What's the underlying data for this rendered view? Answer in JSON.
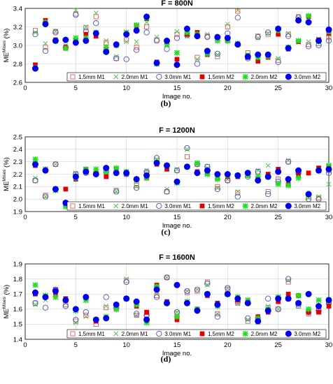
{
  "figure": {
    "colors": {
      "light_red": "#e05a5a",
      "light_green": "#52c452",
      "light_blue": "#4a55bf",
      "red": "#e00000",
      "green": "#22e022",
      "blue": "#0000ee"
    },
    "legend_labels": [
      "1.5mm M1",
      "2.0mm M1",
      "3.0mm M1",
      "1.5mm M2",
      "2.0mm M2",
      "3.0mm M2"
    ]
  },
  "chart_data": [
    {
      "type": "scatter",
      "title": "F = 800N",
      "letter": "(b)",
      "xlabel": "Image no.",
      "ylabel": "ME",
      "ylabel_sup": "Mises",
      "ylabel_unit": "(%)",
      "xlim": [
        0,
        30
      ],
      "ylim": [
        2.6,
        3.4
      ],
      "xticks": [
        0,
        5,
        10,
        15,
        20,
        25,
        30
      ],
      "yticks": [
        2.6,
        2.8,
        3.0,
        3.2,
        3.4
      ],
      "x": [
        1,
        2,
        3,
        4,
        5,
        6,
        7,
        8,
        9,
        10,
        11,
        12,
        13,
        14,
        15,
        16,
        17,
        18,
        19,
        20,
        21,
        22,
        23,
        24,
        25,
        26,
        27,
        28,
        29,
        30
      ],
      "series": [
        {
          "name": "1.5mm M1",
          "marker": "open-square",
          "color": "#e05a5a",
          "values": [
            3.16,
            2.98,
            3.15,
            2.97,
            3.34,
            3.19,
            3.31,
            3.03,
            2.86,
            3.06,
            2.98,
            3.2,
            3.06,
            3.04,
            3.12,
            3.14,
            2.87,
            3.1,
            2.88,
            3.2,
            3.37,
            2.92,
            3.1,
            3.12,
            2.84,
            3.12,
            3.31,
            3.01,
            3.02,
            3.09
          ]
        },
        {
          "name": "2.0mm M1",
          "marker": "x",
          "color": "#52c452",
          "values": [
            3.14,
            3.02,
            3.15,
            3.0,
            3.38,
            3.2,
            3.35,
            3.05,
            2.88,
            3.04,
            3.04,
            3.25,
            3.09,
            3.03,
            3.15,
            3.1,
            2.85,
            3.12,
            2.9,
            3.23,
            3.38,
            2.9,
            3.08,
            3.13,
            2.86,
            3.13,
            3.3,
            3.04,
            3.07,
            3.12
          ]
        },
        {
          "name": "3.0mm M1",
          "marker": "open-circle",
          "color": "#4a55bf",
          "values": [
            3.12,
            2.94,
            3.14,
            2.98,
            3.33,
            3.15,
            3.24,
            2.94,
            2.86,
            2.85,
            2.95,
            3.14,
            3.05,
            2.96,
            3.08,
            3.11,
            2.8,
            3.09,
            2.91,
            3.13,
            3.3,
            2.86,
            3.09,
            3.14,
            2.82,
            3.1,
            3.3,
            2.99,
            3.0,
            3.05
          ]
        },
        {
          "name": "1.5mm M2",
          "marker": "filled-square",
          "color": "#e00000",
          "values": [
            2.79,
            3.27,
            3.06,
            2.98,
            3.05,
            3.12,
            3.1,
            2.96,
            3.0,
            3.12,
            3.21,
            3.29,
            2.82,
            3.04,
            2.85,
            3.12,
            3.14,
            2.9,
            3.07,
            3.05,
            3.01,
            2.87,
            2.83,
            2.87,
            3.12,
            2.96,
            3.04,
            3.31,
            3.06,
            3.13
          ]
        },
        {
          "name": "2.0mm M2",
          "marker": "star",
          "color": "#22e022",
          "values": [
            2.76,
            3.25,
            3.05,
            2.97,
            3.08,
            3.08,
            3.14,
            2.98,
            3.0,
            3.14,
            3.22,
            3.3,
            2.8,
            3.01,
            2.92,
            3.14,
            3.12,
            2.91,
            3.05,
            3.05,
            3.02,
            2.89,
            2.87,
            2.88,
            3.16,
            2.98,
            3.05,
            3.32,
            3.04,
            3.15
          ]
        },
        {
          "name": "3.0mm M2",
          "marker": "filled-circle",
          "color": "#0000ee",
          "values": [
            2.75,
            3.23,
            3.05,
            3.06,
            3.03,
            3.05,
            3.13,
            2.93,
            3.01,
            3.12,
            3.16,
            3.31,
            2.81,
            3.05,
            2.79,
            3.18,
            3.1,
            2.94,
            3.09,
            3.08,
            3.01,
            2.88,
            2.9,
            2.9,
            3.18,
            2.97,
            3.27,
            3.25,
            3.05,
            3.17
          ]
        }
      ]
    },
    {
      "type": "scatter",
      "title": "F = 1200N",
      "letter": "(c)",
      "xlabel": "Image no.",
      "ylabel": "ME",
      "ylabel_sup": "Mises",
      "ylabel_unit": "(%)",
      "xlim": [
        0,
        30
      ],
      "ylim": [
        1.9,
        2.5
      ],
      "xticks": [
        0,
        5,
        10,
        15,
        20,
        25,
        30
      ],
      "yticks": [
        1.9,
        2.0,
        2.1,
        2.2,
        2.3,
        2.4,
        2.5
      ],
      "x": [
        1,
        2,
        3,
        4,
        5,
        6,
        7,
        8,
        9,
        10,
        11,
        12,
        13,
        14,
        15,
        16,
        17,
        18,
        19,
        20,
        21,
        22,
        23,
        24,
        25,
        26,
        27,
        28,
        29,
        30
      ],
      "series": [
        {
          "name": "1.5mm M1",
          "marker": "open-square",
          "color": "#e05a5a",
          "values": [
            2.15,
            2.03,
            2.28,
            1.97,
            2.2,
            2.23,
            2.21,
            2.22,
            2.07,
            2.2,
            2.11,
            2.21,
            2.31,
            2.06,
            2.23,
            2.34,
            2.28,
            2.26,
            2.1,
            2.15,
            2.05,
            2.19,
            2.22,
            2.06,
            2.16,
            2.3,
            2.22,
            2.02,
            2.01,
            2.23
          ]
        },
        {
          "name": "2.0mm M1",
          "marker": "x",
          "color": "#52c452",
          "values": [
            2.17,
            2.02,
            2.28,
            1.97,
            2.21,
            2.24,
            2.22,
            2.23,
            2.06,
            2.21,
            2.1,
            2.23,
            2.32,
            2.08,
            2.24,
            2.4,
            2.28,
            2.25,
            2.09,
            2.16,
            2.06,
            2.2,
            2.23,
            2.27,
            2.13,
            2.31,
            2.21,
            2.01,
            2.02,
            2.12
          ]
        },
        {
          "name": "3.0mm M1",
          "marker": "open-circle",
          "color": "#4a55bf",
          "values": [
            2.15,
            2.02,
            2.28,
            1.96,
            2.2,
            2.21,
            2.21,
            2.22,
            2.06,
            2.2,
            2.09,
            2.22,
            2.33,
            2.06,
            2.23,
            2.41,
            2.28,
            2.26,
            2.08,
            2.15,
            2.02,
            2.18,
            2.22,
            2.04,
            2.14,
            2.3,
            2.21,
            2.0,
            2.0,
            2.21
          ]
        },
        {
          "name": "1.5mm M2",
          "marker": "filled-square",
          "color": "#e00000",
          "values": [
            2.27,
            2.23,
            2.08,
            2.08,
            2.16,
            2.24,
            2.21,
            2.18,
            2.24,
            2.21,
            2.16,
            2.17,
            2.28,
            2.24,
            2.14,
            2.26,
            2.22,
            2.21,
            2.17,
            2.18,
            2.18,
            2.21,
            2.16,
            2.2,
            2.24,
            2.12,
            2.19,
            2.21,
            2.25,
            2.26
          ]
        },
        {
          "name": "2.0mm M2",
          "marker": "star",
          "color": "#22e022",
          "values": [
            2.32,
            2.24,
            2.07,
            1.94,
            2.17,
            2.24,
            2.24,
            2.22,
            2.25,
            2.22,
            2.15,
            2.17,
            2.3,
            2.27,
            2.13,
            2.26,
            2.29,
            2.2,
            2.16,
            2.19,
            2.19,
            2.19,
            2.18,
            2.18,
            2.12,
            2.11,
            2.17,
            2.03,
            2.23,
            2.27
          ]
        },
        {
          "name": "3.0mm M2",
          "marker": "filled-circle",
          "color": "#0000ee",
          "values": [
            2.28,
            2.23,
            2.08,
            1.97,
            2.18,
            2.22,
            2.2,
            2.25,
            2.21,
            2.21,
            2.16,
            2.19,
            2.29,
            2.27,
            2.14,
            2.26,
            2.21,
            2.23,
            2.2,
            2.2,
            2.19,
            2.21,
            2.15,
            2.18,
            2.22,
            2.16,
            2.23,
            2.04,
            2.23,
            2.24
          ]
        }
      ]
    },
    {
      "type": "scatter",
      "title": "F = 1600N",
      "letter": "(d)",
      "xlabel": "Image no.",
      "ylabel": "ME",
      "ylabel_sup": "Mises",
      "ylabel_unit": "(%)",
      "xlim": [
        0,
        30
      ],
      "ylim": [
        1.4,
        1.9
      ],
      "xticks": [
        0,
        5,
        10,
        15,
        20,
        25,
        30
      ],
      "yticks": [
        1.4,
        1.5,
        1.6,
        1.7,
        1.8,
        1.9
      ],
      "x": [
        1,
        2,
        3,
        4,
        5,
        6,
        7,
        8,
        9,
        10,
        11,
        12,
        13,
        14,
        15,
        16,
        17,
        18,
        19,
        20,
        21,
        22,
        23,
        24,
        25,
        26,
        27,
        28,
        29,
        30
      ],
      "series": [
        {
          "name": "1.5mm M1",
          "marker": "open-square",
          "color": "#e05a5a",
          "values": [
            1.64,
            1.68,
            1.73,
            1.63,
            1.52,
            1.56,
            1.5,
            1.61,
            1.6,
            1.79,
            1.56,
            1.55,
            1.69,
            1.81,
            1.57,
            1.71,
            1.72,
            1.78,
            1.57,
            1.73,
            1.64,
            1.52,
            1.52,
            1.61,
            1.6,
            1.78,
            1.62,
            1.57,
            1.59,
            1.65
          ]
        },
        {
          "name": "2.0mm M1",
          "marker": "x",
          "color": "#52c452",
          "values": [
            1.63,
            1.66,
            1.73,
            1.64,
            1.51,
            1.55,
            1.52,
            1.62,
            1.62,
            1.8,
            1.56,
            1.54,
            1.7,
            1.81,
            1.58,
            1.72,
            1.73,
            1.76,
            1.57,
            1.74,
            1.64,
            1.53,
            1.51,
            1.62,
            1.6,
            1.79,
            1.64,
            1.59,
            1.6,
            1.65
          ]
        },
        {
          "name": "3.0mm M1",
          "marker": "open-circle",
          "color": "#4a55bf",
          "values": [
            1.64,
            1.61,
            1.73,
            1.62,
            1.53,
            1.58,
            1.53,
            1.68,
            1.61,
            1.78,
            1.57,
            1.56,
            1.68,
            1.81,
            1.58,
            1.72,
            1.73,
            1.77,
            1.55,
            1.74,
            1.65,
            1.54,
            1.54,
            1.67,
            1.6,
            1.8,
            1.63,
            1.58,
            1.59,
            1.64
          ]
        },
        {
          "name": "1.5mm M2",
          "marker": "filled-square",
          "color": "#e00000",
          "values": [
            1.7,
            1.68,
            1.7,
            1.67,
            1.6,
            1.68,
            1.52,
            1.54,
            1.62,
            1.67,
            1.62,
            1.58,
            1.76,
            1.65,
            1.53,
            1.64,
            1.6,
            1.69,
            1.64,
            1.7,
            1.66,
            1.65,
            1.55,
            1.58,
            1.65,
            1.7,
            1.69,
            1.58,
            1.58,
            1.62
          ]
        },
        {
          "name": "2.0mm M2",
          "marker": "star",
          "color": "#22e022",
          "values": [
            1.76,
            1.69,
            1.68,
            1.66,
            1.59,
            1.66,
            1.53,
            1.55,
            1.6,
            1.67,
            1.63,
            1.51,
            1.75,
            1.64,
            1.55,
            1.65,
            1.6,
            1.7,
            1.62,
            1.7,
            1.68,
            1.66,
            1.54,
            1.6,
            1.68,
            1.67,
            1.69,
            1.6,
            1.66,
            1.66
          ]
        },
        {
          "name": "3.0mm M2",
          "marker": "filled-circle",
          "color": "#0000ee",
          "values": [
            1.71,
            1.68,
            1.72,
            1.66,
            1.6,
            1.68,
            1.53,
            1.54,
            1.63,
            1.67,
            1.65,
            1.53,
            1.73,
            1.64,
            1.76,
            1.64,
            1.59,
            1.7,
            1.63,
            1.7,
            1.67,
            1.64,
            1.52,
            1.59,
            1.67,
            1.67,
            1.64,
            1.7,
            1.62,
            1.66
          ]
        }
      ]
    }
  ]
}
